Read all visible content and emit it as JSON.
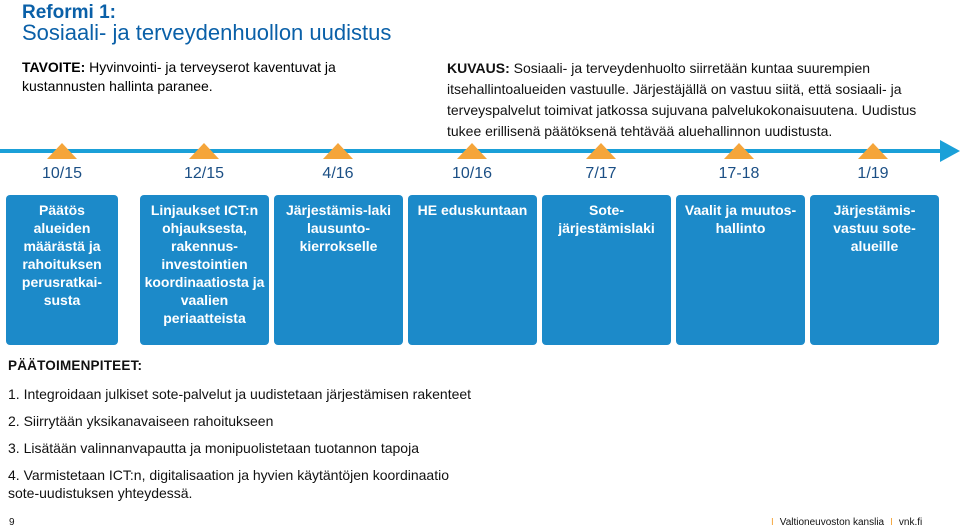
{
  "header": {
    "title_line1": "Reformi 1:",
    "title_line2": "Sosiaali- ja terveydenhuollon uudistus"
  },
  "tavoite": {
    "label": "TAVOITE:",
    "text": " Hyvinvointi- ja terveyserot kaventuvat ja kustannusten hallinta paranee."
  },
  "kuvaus": {
    "label": "KUVAUS:",
    "text": " Sosiaali- ja terveydenhuolto siirretään kuntaa suurempien itsehallintoalueiden vastuulle. Järjestäjällä on vastuu siitä, että sosiaali- ja terveyspalvelut toimivat jatkossa sujuvana palvelukokonaisuutena. Uudistus tukee erillisenä päätöksenä tehtävää aluehallinnon uudistusta."
  },
  "milestones": [
    {
      "date": "10/15",
      "text": "Päätös alueiden määrästä ja rahoituksen perusratkai-susta"
    },
    {
      "date": "12/15",
      "text": "Linjaukset ICT:n ohjauksesta, rakennus-investointien koordinaatiosta ja vaalien periaatteista"
    },
    {
      "date": "4/16",
      "text": "Järjestämis-laki lausunto-kierrokselle"
    },
    {
      "date": "10/16",
      "text": "HE eduskuntaan"
    },
    {
      "date": "7/17",
      "text": "Sote-järjestämislaki"
    },
    {
      "date": "17-18",
      "text": "Vaalit ja muutos-hallinto"
    },
    {
      "date": "1/19",
      "text": "Järjestämis-vastuu sote-alueille"
    }
  ],
  "paatoimenpiteet": {
    "heading": "PÄÄTOIMENPITEET:",
    "items": [
      "1. Integroidaan julkiset sote-palvelut ja uudistetaan järjestämisen rakenteet",
      "2. Siirrytään yksikanavaiseen rahoitukseen",
      "3. Lisätään valinnanvapautta ja monipuolistetaan tuotannon tapoja",
      "4. Varmistetaan ICT:n, digitalisaation ja hyvien käytäntöjen koordinaatio sote-uudistuksen yhteydessä."
    ]
  },
  "footer": {
    "page_number": "9",
    "separator": "I",
    "org": "Valtioneuvoston kanslia",
    "site": "vnk.fi"
  },
  "colors": {
    "title": "#0a60a8",
    "timeline": "#1ba0d8",
    "marker": "#f5a53a",
    "box": "#1c8ac9",
    "date": "#1b4f85"
  }
}
